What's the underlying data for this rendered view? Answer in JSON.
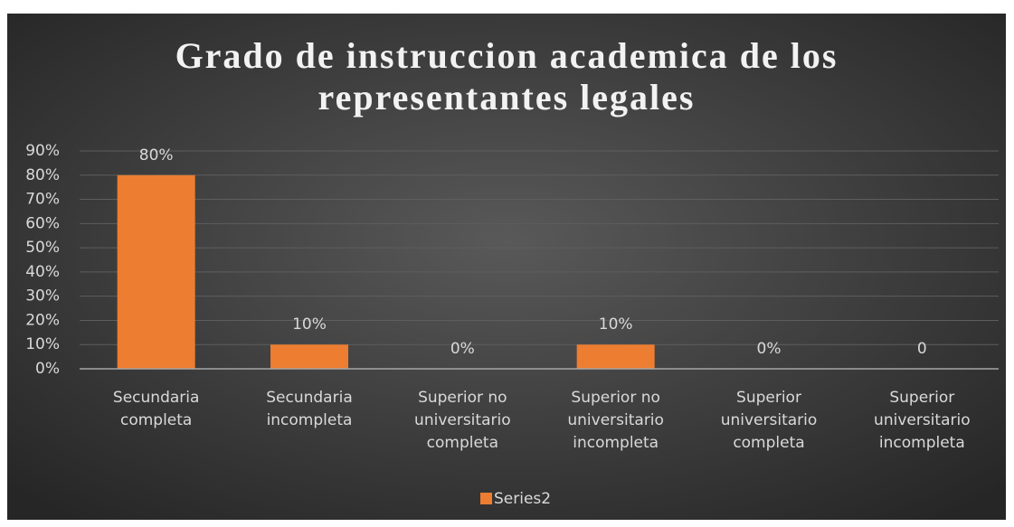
{
  "chart_data": {
    "type": "bar",
    "title": "Grado de instruccion academica de los representantes legales",
    "categories": [
      "Secundaria completa",
      "Secundaria incompleta",
      "Superior no universitario completa",
      "Superior no universitario incompleta",
      "Superior universitario completa",
      "Superior universitario incompleta"
    ],
    "series": [
      {
        "name": "Series2",
        "color": "#ed7d31",
        "values": [
          80,
          10,
          0,
          10,
          0,
          0
        ],
        "value_labels": [
          "80%",
          "10%",
          "0%",
          "10%",
          "0%",
          "0"
        ]
      }
    ],
    "ylim": [
      0,
      90
    ],
    "yticks": [
      {
        "value": 0,
        "label": "0%"
      },
      {
        "value": 10,
        "label": "10%"
      },
      {
        "value": 20,
        "label": "20%"
      },
      {
        "value": 30,
        "label": "30%"
      },
      {
        "value": 40,
        "label": "40%"
      },
      {
        "value": 50,
        "label": "50%"
      },
      {
        "value": 60,
        "label": "60%"
      },
      {
        "value": 70,
        "label": "70%"
      },
      {
        "value": 80,
        "label": "80%"
      },
      {
        "value": 90,
        "label": "90%"
      }
    ],
    "grid": true,
    "legend": "bottom"
  }
}
